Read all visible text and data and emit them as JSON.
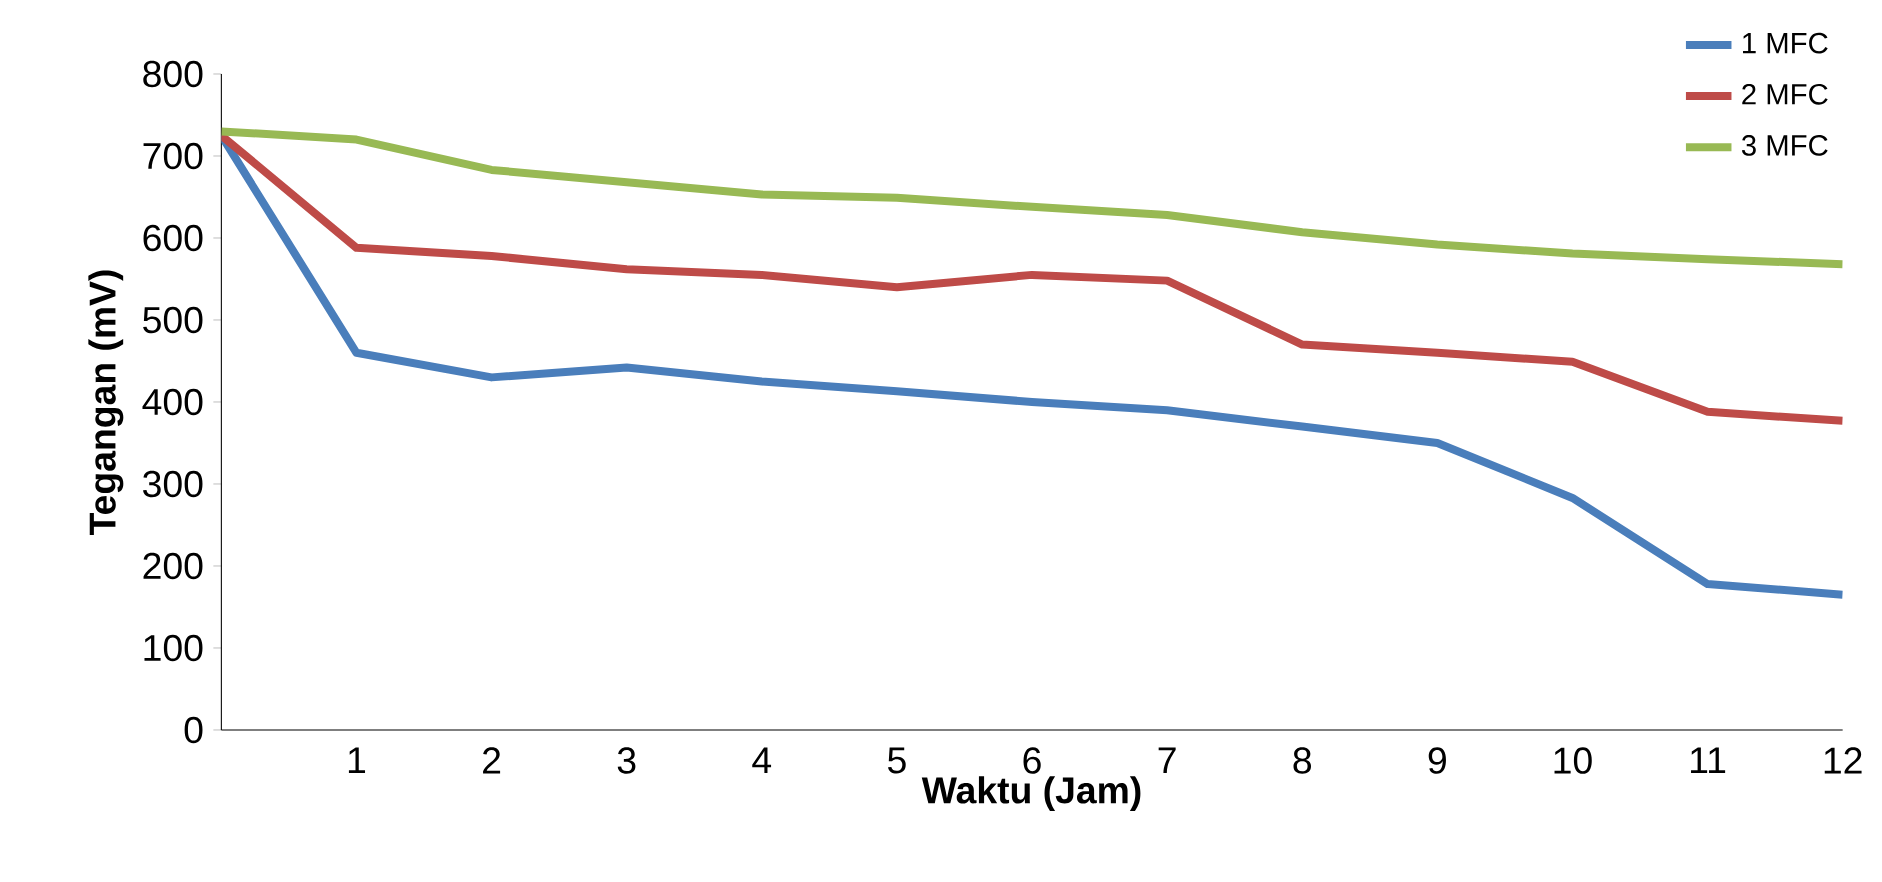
{
  "chart_data": {
    "type": "line",
    "xlabel": "Waktu (Jam)",
    "ylabel": "Tegangan (mV)",
    "x": [
      0,
      1,
      2,
      3,
      4,
      5,
      6,
      7,
      8,
      9,
      10,
      11,
      12
    ],
    "series": [
      {
        "name": "1 MFC",
        "color": "#4a7ebb",
        "values": [
          725,
          460,
          430,
          442,
          425,
          413,
          400,
          390,
          370,
          350,
          283,
          178,
          165
        ]
      },
      {
        "name": "2 MFC",
        "color": "#be4b48",
        "values": [
          725,
          588,
          578,
          562,
          555,
          540,
          555,
          548,
          470,
          460,
          449,
          388,
          377
        ]
      },
      {
        "name": "3 MFC",
        "color": "#98b954",
        "values": [
          730,
          720,
          683,
          668,
          653,
          649,
          638,
          628,
          607,
          592,
          581,
          574,
          568
        ]
      }
    ],
    "xlim": [
      0,
      12
    ],
    "xticks": [
      1,
      2,
      3,
      4,
      5,
      6,
      7,
      8,
      9,
      10,
      11,
      12
    ],
    "ylim": [
      0,
      800
    ],
    "yticks": [
      0,
      100,
      200,
      300,
      400,
      500,
      600,
      700,
      800
    ],
    "legend": "top right",
    "grid": false,
    "marker": "none",
    "line_style": "solid"
  }
}
